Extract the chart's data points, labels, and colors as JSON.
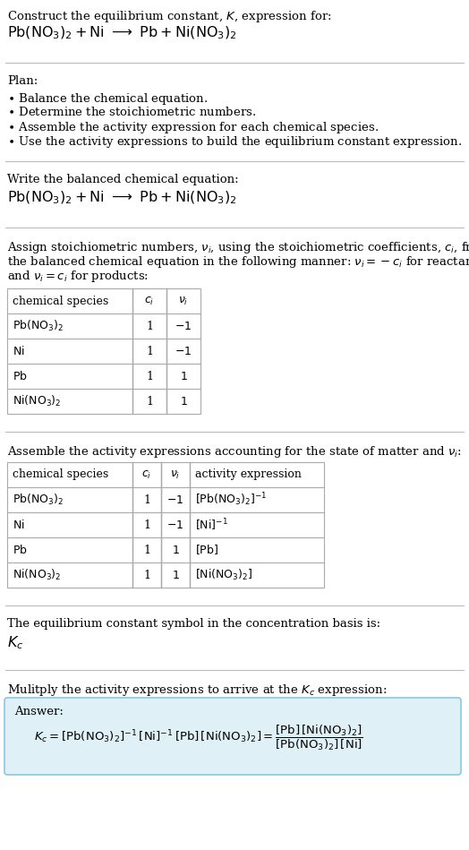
{
  "bg_color": "#ffffff",
  "answer_box_color": "#dff0f7",
  "answer_box_border": "#89c9e0",
  "text_color": "#000000",
  "divider_color": "#cccccc",
  "title_line1": "Construct the equilibrium constant, $K$, expression for:",
  "title_eq": "$\\mathrm{Pb(NO_3)_2 + Ni\\ \\longrightarrow\\ Pb + Ni(NO_3)_2}$",
  "plan_header": "Plan:",
  "plan_bullets": [
    "\\textbullet  Balance the chemical equation.",
    "\\textbullet  Determine the stoichiometric numbers.",
    "\\textbullet  Assemble the activity expression for each chemical species.",
    "\\textbullet  Use the activity expressions to build the equilibrium constant expression."
  ],
  "balanced_header": "Write the balanced chemical equation:",
  "balanced_eq": "$\\mathrm{Pb(NO_3)_2 + Ni\\ \\longrightarrow\\ Pb + Ni(NO_3)_2}$",
  "stoich_lines": [
    "Assign stoichiometric numbers, $\\nu_i$, using the stoichiometric coefficients, $c_i$, from",
    "the balanced chemical equation in the following manner: $\\nu_i = -c_i$ for reactants",
    "and $\\nu_i = c_i$ for products:"
  ],
  "table1_header": [
    "chemical species",
    "$c_i$",
    "$\\nu_i$"
  ],
  "table1_rows": [
    [
      "$\\mathrm{Pb(NO_3)_2}$",
      "1",
      "$-1$"
    ],
    [
      "$\\mathrm{Ni}$",
      "1",
      "$-1$"
    ],
    [
      "$\\mathrm{Pb}$",
      "1",
      "$1$"
    ],
    [
      "$\\mathrm{Ni(NO_3)_2}$",
      "1",
      "$1$"
    ]
  ],
  "assemble_header": "Assemble the activity expressions accounting for the state of matter and $\\nu_i$:",
  "table2_header": [
    "chemical species",
    "$c_i$",
    "$\\nu_i$",
    "activity expression"
  ],
  "table2_rows": [
    [
      "$\\mathrm{Pb(NO_3)_2}$",
      "1",
      "$-1$",
      "$[\\mathrm{Pb(NO_3)_2}]^{-1}$"
    ],
    [
      "$\\mathrm{Ni}$",
      "1",
      "$-1$",
      "$[\\mathrm{Ni}]^{-1}$"
    ],
    [
      "$\\mathrm{Pb}$",
      "1",
      "$1$",
      "$[\\mathrm{Pb}]$"
    ],
    [
      "$\\mathrm{Ni(NO_3)_2}$",
      "1",
      "$1$",
      "$[\\mathrm{Ni(NO_3)_2}]$"
    ]
  ],
  "kc_text": "The equilibrium constant symbol in the concentration basis is:",
  "kc_symbol": "$K_c$",
  "multiply_text": "Mulitply the activity expressions to arrive at the $K_c$ expression:",
  "answer_label": "Answer:",
  "answer_kc": "$K_c = [\\mathrm{Pb(NO_3)_2}]^{-1}\\,[\\mathrm{Ni}]^{-1}\\,[\\mathrm{Pb}]\\,[\\mathrm{Ni(NO_3)_2}] = \\dfrac{[\\mathrm{Pb}]\\,[\\mathrm{Ni(NO_3)_2}]}{[\\mathrm{Pb(NO_3)_2}]\\,[\\mathrm{Ni}]}$"
}
